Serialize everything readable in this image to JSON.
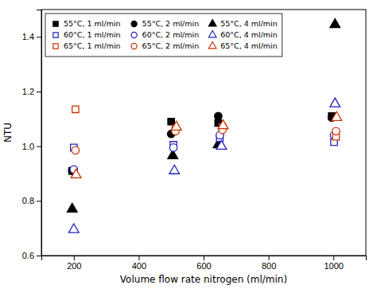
{
  "chart_data": {
    "type": "scatter",
    "xlabel": "Volume flow rate nitrogen (ml/min)",
    "ylabel": "NTU",
    "xlim": [
      100,
      1100
    ],
    "ylim": [
      0.6,
      1.5
    ],
    "xticks": [
      200,
      400,
      600,
      800,
      1000
    ],
    "yticks": [
      0.6,
      0.8,
      {
        "value": 1.0,
        "label": "1.0"
      },
      1.2,
      1.4
    ],
    "grid": false,
    "legend": "upper-left",
    "series": [
      {
        "name": "55°C, 1 ml/min",
        "color": "black",
        "marker": "square",
        "x": [
          195,
          500,
          645,
          995
        ],
        "values": [
          0.91,
          1.09,
          1.085,
          1.11
        ]
      },
      {
        "name": "55°C, 2 ml/min",
        "color": "black",
        "marker": "circle",
        "x": [
          195,
          500,
          645,
          995
        ],
        "values": [
          0.91,
          1.045,
          1.11,
          1.105
        ]
      },
      {
        "name": "55°C, 4 ml/min",
        "color": "black",
        "marker": "triangle",
        "x": [
          195,
          505,
          645,
          1005
        ],
        "values": [
          0.77,
          0.965,
          1.005,
          1.445
        ]
      },
      {
        "name": "60°C, 1 ml/min",
        "color": "#2222bb",
        "marker": "open-square",
        "x": [
          200,
          507,
          650,
          1002
        ],
        "values": [
          0.995,
          1.005,
          1.03,
          1.015
        ]
      },
      {
        "name": "60°C, 2 ml/min",
        "color": "#2222bb",
        "marker": "open-circle",
        "x": [
          200,
          507,
          650,
          1002
        ],
        "values": [
          0.915,
          0.995,
          1.04,
          1.04
        ]
      },
      {
        "name": "60°C, 4 ml/min",
        "color": "#2222bb",
        "marker": "open-triangle",
        "x": [
          200,
          510,
          655,
          1005
        ],
        "values": [
          0.695,
          0.91,
          1.0,
          1.155
        ]
      },
      {
        "name": "65°C, 1 ml/min",
        "color": "#cc3300",
        "marker": "open-square",
        "x": [
          205,
          513,
          658,
          1008
        ],
        "values": [
          1.135,
          1.065,
          1.07,
          1.035
        ]
      },
      {
        "name": "65°C, 2 ml/min",
        "color": "#cc3300",
        "marker": "open-circle",
        "x": [
          205,
          513,
          658,
          1008
        ],
        "values": [
          0.985,
          1.055,
          1.06,
          1.055
        ]
      },
      {
        "name": "65°C, 4 ml/min",
        "color": "#cc3300",
        "marker": "open-triangle",
        "x": [
          207,
          516,
          660,
          1010
        ],
        "values": [
          0.895,
          1.07,
          1.075,
          1.105
        ]
      }
    ]
  }
}
